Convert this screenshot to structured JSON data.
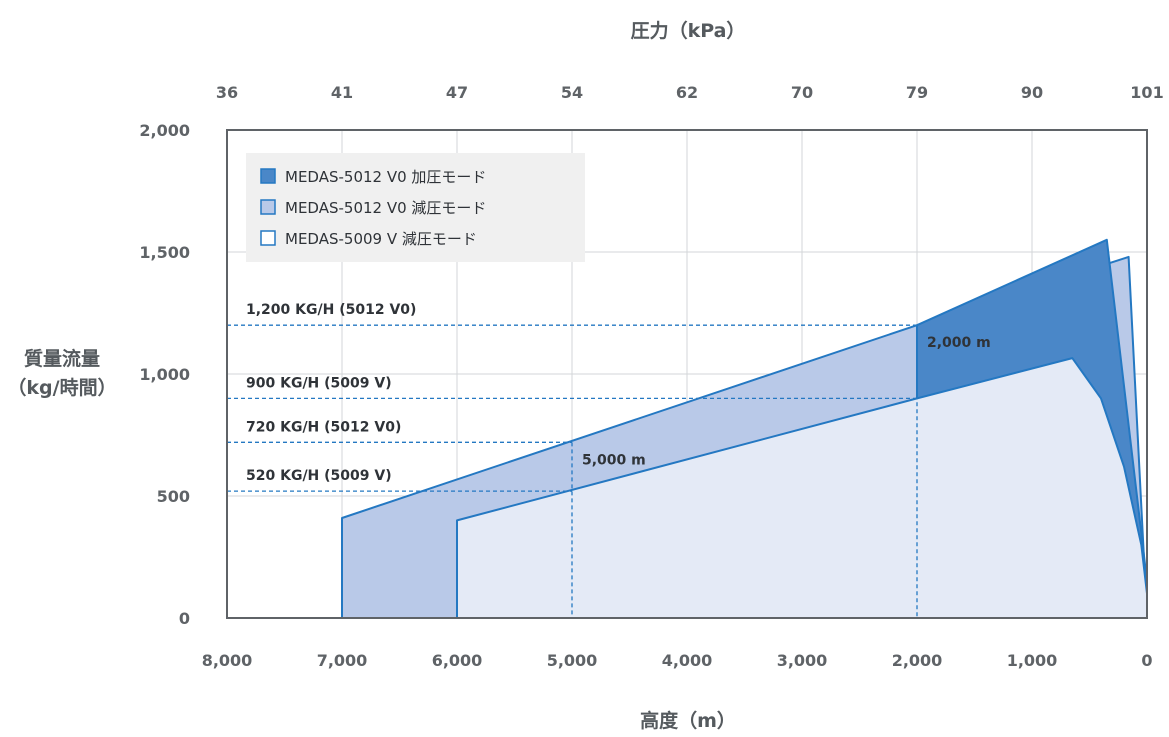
{
  "chart_data": {
    "type": "area",
    "x_title": "高度（m）",
    "x2_title": "圧力（kPa）",
    "y_title_lines": [
      "質量流量",
      "（kg/時間）"
    ],
    "x_axis": {
      "reversed": true,
      "range": [
        0,
        8000
      ]
    },
    "y_axis": {
      "range": [
        0,
        2000
      ]
    },
    "x_ticks": [
      {
        "v": 8000,
        "label": "8,000"
      },
      {
        "v": 7000,
        "label": "7,000"
      },
      {
        "v": 6000,
        "label": "6,000"
      },
      {
        "v": 5000,
        "label": "5,000"
      },
      {
        "v": 4000,
        "label": "4,000"
      },
      {
        "v": 3000,
        "label": "3,000"
      },
      {
        "v": 2000,
        "label": "2,000"
      },
      {
        "v": 1000,
        "label": "1,000"
      },
      {
        "v": 0,
        "label": "0"
      }
    ],
    "x2_ticks": [
      {
        "v": 8000,
        "label": "36"
      },
      {
        "v": 7000,
        "label": "41"
      },
      {
        "v": 6000,
        "label": "47"
      },
      {
        "v": 5000,
        "label": "54"
      },
      {
        "v": 4000,
        "label": "62"
      },
      {
        "v": 3000,
        "label": "70"
      },
      {
        "v": 2000,
        "label": "79"
      },
      {
        "v": 1000,
        "label": "90"
      },
      {
        "v": 0,
        "label": "101"
      }
    ],
    "y_ticks": [
      {
        "v": 2000,
        "label": "2,000"
      },
      {
        "v": 1500,
        "label": "1,500"
      },
      {
        "v": 1000,
        "label": "1,000"
      },
      {
        "v": 500,
        "label": "500"
      },
      {
        "v": 0,
        "label": "0"
      }
    ],
    "series": [
      {
        "name": "MEDAS-5012 V0 減圧モード",
        "fill": "#b9c9e8",
        "stroke": "#2478c2",
        "points": [
          [
            7000,
            0
          ],
          [
            7000,
            410
          ],
          [
            2000,
            1200
          ],
          [
            160,
            1480
          ],
          [
            0,
            0
          ]
        ]
      },
      {
        "name": "MEDAS-5012 V0 加圧モード",
        "fill": "#4a87c8",
        "stroke": "#2478c2",
        "points": [
          [
            2000,
            900
          ],
          [
            2000,
            1200
          ],
          [
            350,
            1550
          ],
          [
            0,
            150
          ],
          [
            0,
            0
          ]
        ]
      },
      {
        "name": "MEDAS-5009 V 減圧モード",
        "fill": "#e4eaf6",
        "stroke": "#2478c2",
        "points": [
          [
            6000,
            0
          ],
          [
            6000,
            400
          ],
          [
            2000,
            900
          ],
          [
            650,
            1065
          ],
          [
            400,
            900
          ],
          [
            200,
            620
          ],
          [
            50,
            300
          ],
          [
            0,
            100
          ],
          [
            0,
            0
          ]
        ]
      }
    ],
    "legend_order": [
      {
        "name": "MEDAS-5012 V0 加圧モード",
        "fill": "#4a87c8",
        "stroke": "#2478c2"
      },
      {
        "name": "MEDAS-5012 V0 減圧モード",
        "fill": "#b9c9e8",
        "stroke": "#2478c2"
      },
      {
        "name": "MEDAS-5009 V 減圧モード",
        "fill": "#ffffff",
        "stroke": "#2478c2"
      }
    ],
    "legend_position": "top-left",
    "grid": true,
    "reference_lines_h": [
      {
        "y": 1200,
        "label": "1,200 KG/H (5012 V0)",
        "x_end": 2000
      },
      {
        "y": 900,
        "label": "900 KG/H (5009 V)",
        "x_end": 2000
      },
      {
        "y": 720,
        "label": "720 KG/H (5012 V0)",
        "x_end": 5000
      },
      {
        "y": 520,
        "label": "520 KG/H (5009 V)",
        "x_end": 5000
      }
    ],
    "reference_lines_v": [
      {
        "x": 5000,
        "y_top": 720
      },
      {
        "x": 2000,
        "y_top": 1200
      }
    ],
    "annotations": [
      {
        "x": 5000,
        "y": 720,
        "label": "5,000 m"
      },
      {
        "x": 2000,
        "y": 1200,
        "label": "2,000 m"
      }
    ]
  }
}
